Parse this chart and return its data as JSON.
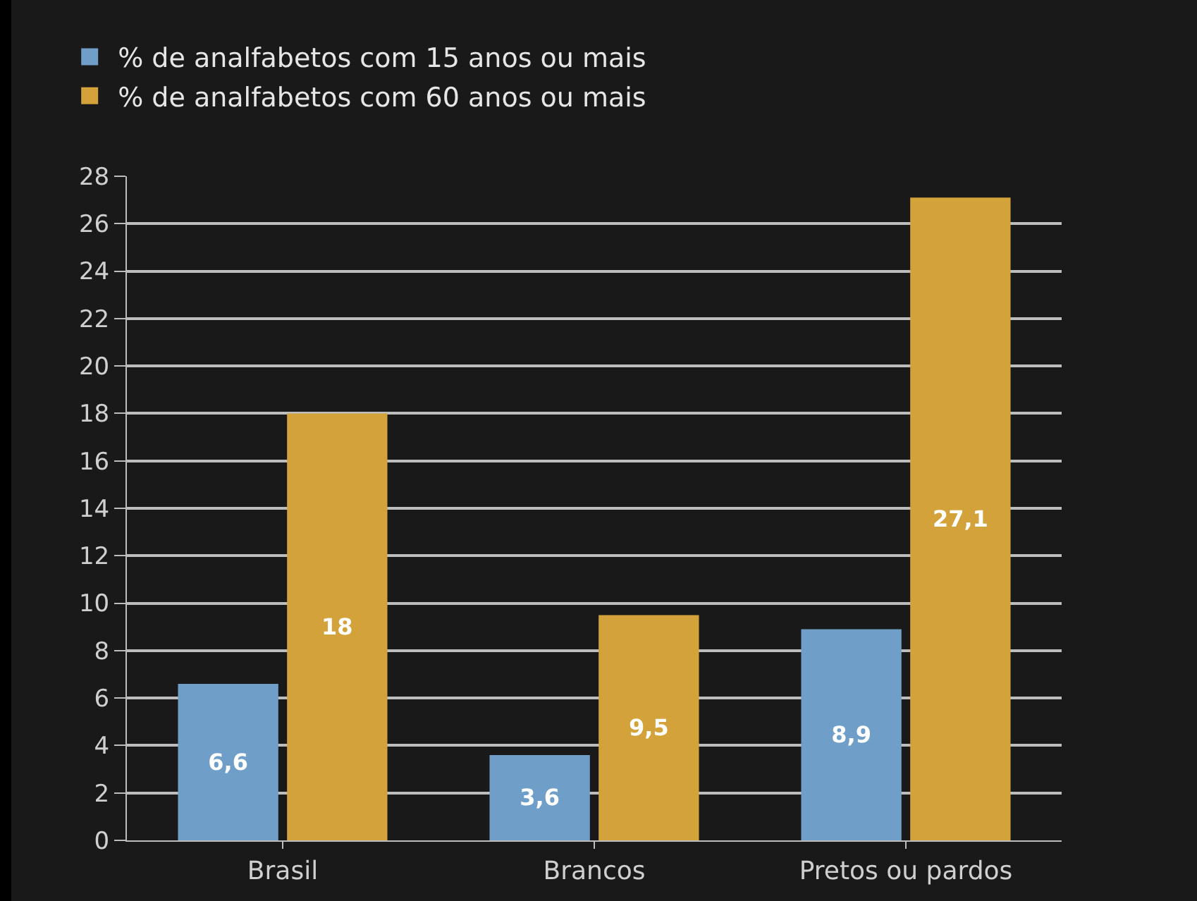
{
  "chart_data": {
    "type": "bar",
    "categories": [
      "Brasil",
      "Brancos",
      "Pretos ou pardos"
    ],
    "series": [
      {
        "name": "% de analfabetos com 15 anos ou mais",
        "color": "#6f9fc8",
        "values": [
          6.6,
          3.6,
          8.9
        ],
        "value_labels": [
          "6,6",
          "3,6",
          "8,9"
        ]
      },
      {
        "name": "% de analfabetos com 60 anos ou mais",
        "color": "#d4a23a",
        "values": [
          18,
          9.5,
          27.1
        ],
        "value_labels": [
          "18",
          "9,5",
          "27,1"
        ]
      }
    ],
    "ylim": [
      0,
      28
    ],
    "yticks": [
      0,
      2,
      4,
      6,
      8,
      10,
      12,
      14,
      16,
      18,
      20,
      22,
      24,
      26,
      28
    ],
    "grid": "y",
    "legend": "top left"
  }
}
